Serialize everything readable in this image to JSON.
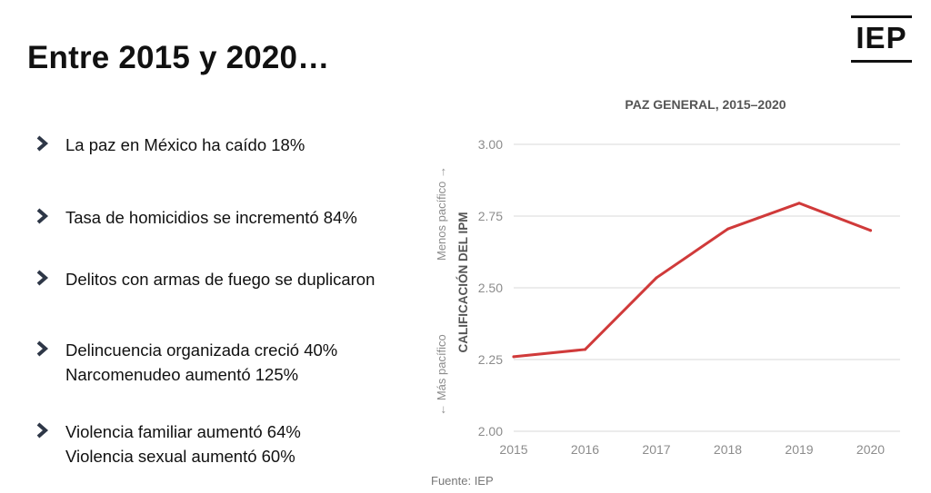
{
  "slide": {
    "title": "Entre 2015 y 2020…",
    "logo_text": "IEP",
    "bullets": [
      {
        "lines": [
          "La paz en México ha caído 18%"
        ]
      },
      {
        "lines": [
          "Tasa de homicidios se incrementó 84%"
        ]
      },
      {
        "lines": [
          "Delitos con armas de fuego se duplicaron"
        ]
      },
      {
        "lines": [
          "Delincuencia organizada creció 40%",
          "Narcomenudeo aumentó 125%"
        ]
      },
      {
        "lines": [
          "Violencia familiar aumentó 64%",
          "Violencia sexual aumentó 60%"
        ]
      }
    ],
    "source": "Fuente: IEP"
  },
  "colors": {
    "line": "#d03a3a",
    "grid": "#d9d9d9",
    "tick": "#8c8c8c",
    "title": "#555555",
    "chevron": "#2e3747"
  },
  "chart_data": {
    "type": "line",
    "title": "PAZ GENERAL, 2015–2020",
    "ylabel": "CALIFICACIÓN DEL IPM",
    "ylabel_top": "Menos pacífico →",
    "ylabel_bottom": "← Más pacífico",
    "x": [
      "2015",
      "2016",
      "2017",
      "2018",
      "2019",
      "2020"
    ],
    "y_ticks": [
      "2.00",
      "2.25",
      "2.50",
      "2.75",
      "3.00"
    ],
    "ylim": [
      2.0,
      3.0
    ],
    "grid": true,
    "series": [
      {
        "values": [
          2.26,
          2.285,
          2.535,
          2.705,
          2.795,
          2.7
        ]
      }
    ]
  }
}
